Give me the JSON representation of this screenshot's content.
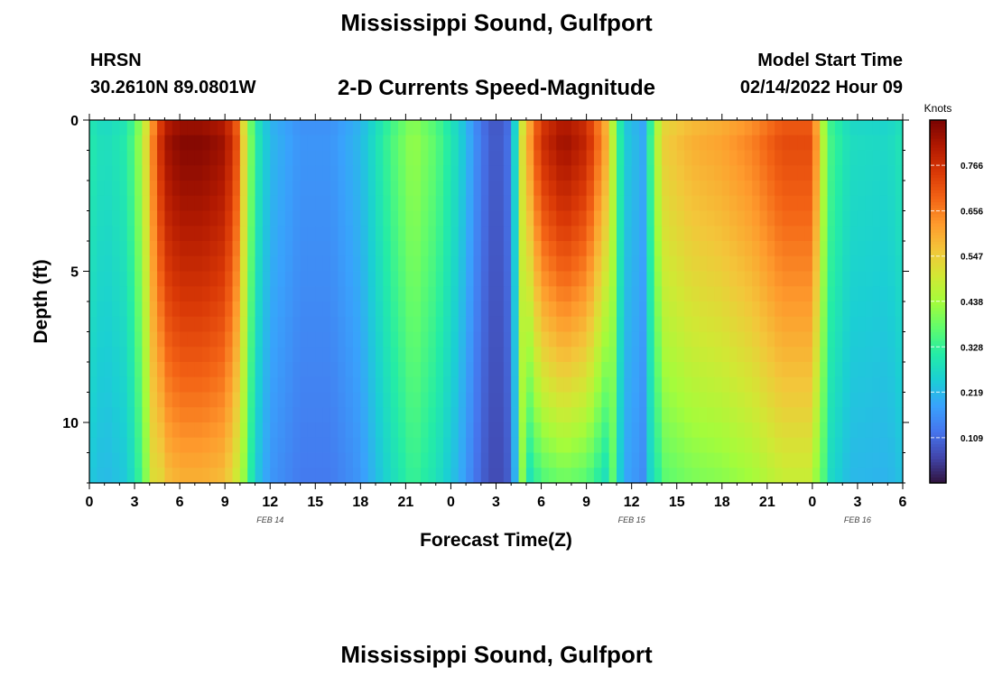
{
  "header": {
    "title": "Mississippi Sound, Gulfport",
    "station": "HRSN",
    "coords": "30.2610N  89.0801W",
    "subtitle": "2-D Currents Speed-Magnitude",
    "model_start_label": "Model Start Time",
    "model_start_value": "02/14/2022 Hour 09",
    "repeat_title": "Mississippi Sound, Gulfport"
  },
  "chart_data": {
    "type": "heatmap",
    "title": "2-D Currents Speed-Magnitude",
    "xlabel": "Forecast Time(Z)",
    "ylabel": "Depth (ft)",
    "x_range_hours": [
      0,
      54
    ],
    "y_range_ft": [
      0,
      12
    ],
    "x_ticks": [
      {
        "h": 0,
        "label": "0"
      },
      {
        "h": 3,
        "label": "3"
      },
      {
        "h": 6,
        "label": "6"
      },
      {
        "h": 9,
        "label": "9"
      },
      {
        "h": 12,
        "label": "12"
      },
      {
        "h": 15,
        "label": "15"
      },
      {
        "h": 18,
        "label": "18"
      },
      {
        "h": 21,
        "label": "21"
      },
      {
        "h": 24,
        "label": "0"
      },
      {
        "h": 27,
        "label": "3"
      },
      {
        "h": 30,
        "label": "6"
      },
      {
        "h": 33,
        "label": "9"
      },
      {
        "h": 36,
        "label": "12"
      },
      {
        "h": 39,
        "label": "15"
      },
      {
        "h": 42,
        "label": "18"
      },
      {
        "h": 45,
        "label": "21"
      },
      {
        "h": 48,
        "label": "0"
      },
      {
        "h": 51,
        "label": "3"
      },
      {
        "h": 54,
        "label": "6"
      }
    ],
    "date_labels": [
      {
        "h": 12,
        "label": "FEB 14"
      },
      {
        "h": 36,
        "label": "FEB 15"
      },
      {
        "h": 51,
        "label": "FEB 16"
      }
    ],
    "y_ticks": [
      {
        "ft": 0,
        "label": "0"
      },
      {
        "ft": 5,
        "label": "5"
      },
      {
        "ft": 10,
        "label": "10"
      }
    ],
    "colorbar": {
      "unit": "Knots",
      "min": 0,
      "max": 0.875,
      "ticks": [
        0.109,
        0.219,
        0.328,
        0.438,
        0.547,
        0.656,
        0.766
      ],
      "tick_labels": [
        "0.109",
        "0.219",
        "0.328",
        "0.438",
        "0.547",
        "0.656",
        "0.766"
      ],
      "colors": [
        "#30123b",
        "#4145ab",
        "#4675ed",
        "#39a2fc",
        "#1bcfd4",
        "#24eca6",
        "#61fc6c",
        "#a4fc3b",
        "#d1e834",
        "#f3c63a",
        "#fe9b2d",
        "#f36315",
        "#d93806",
        "#b11901",
        "#7a0402"
      ]
    },
    "speed_profile_surface": [
      [
        0,
        0.31
      ],
      [
        1,
        0.28
      ],
      [
        2.5,
        0.31
      ],
      [
        3.5,
        0.45
      ],
      [
        4.3,
        0.68
      ],
      [
        5,
        0.83
      ],
      [
        6,
        0.87
      ],
      [
        7.5,
        0.87
      ],
      [
        9,
        0.84
      ],
      [
        9.8,
        0.72
      ],
      [
        10.3,
        0.52
      ],
      [
        11,
        0.32
      ],
      [
        12,
        0.22
      ],
      [
        14,
        0.17
      ],
      [
        16,
        0.17
      ],
      [
        18,
        0.22
      ],
      [
        20,
        0.35
      ],
      [
        21.5,
        0.43
      ],
      [
        23,
        0.37
      ],
      [
        24.5,
        0.27
      ],
      [
        26,
        0.13
      ],
      [
        27,
        0.08
      ],
      [
        27.8,
        0.12
      ],
      [
        28.3,
        0.28
      ],
      [
        28.8,
        0.55
      ],
      [
        30,
        0.78
      ],
      [
        31.5,
        0.85
      ],
      [
        33,
        0.8
      ],
      [
        34.4,
        0.6
      ],
      [
        35,
        0.38
      ],
      [
        35.5,
        0.25
      ],
      [
        36.8,
        0.2
      ],
      [
        37.3,
        0.35
      ],
      [
        38,
        0.55
      ],
      [
        40,
        0.6
      ],
      [
        42,
        0.62
      ],
      [
        44,
        0.66
      ],
      [
        46,
        0.73
      ],
      [
        48,
        0.73
      ],
      [
        48.5,
        0.55
      ],
      [
        49,
        0.36
      ],
      [
        50.5,
        0.28
      ],
      [
        53,
        0.27
      ],
      [
        54,
        0.3
      ]
    ],
    "depth_factor_regions": [
      {
        "start_h": 4.5,
        "end_h": 10.0,
        "bottom_factor": 0.68
      },
      {
        "start_h": 28.8,
        "end_h": 34.5,
        "bottom_factor": 0.45
      },
      {
        "start_h": 37.5,
        "end_h": 48.5,
        "bottom_factor": 0.66
      }
    ]
  }
}
